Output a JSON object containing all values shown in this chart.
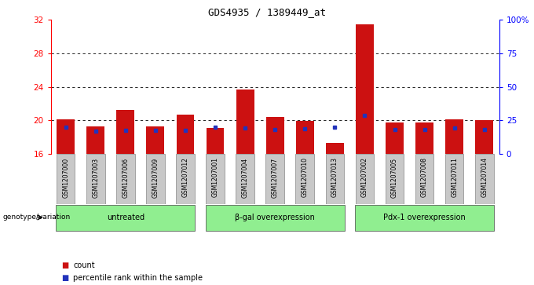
{
  "title": "GDS4935 / 1389449_at",
  "samples": [
    "GSM1207000",
    "GSM1207003",
    "GSM1207006",
    "GSM1207009",
    "GSM1207012",
    "GSM1207001",
    "GSM1207004",
    "GSM1207007",
    "GSM1207010",
    "GSM1207013",
    "GSM1207002",
    "GSM1207005",
    "GSM1207008",
    "GSM1207011",
    "GSM1207014"
  ],
  "count_values": [
    20.1,
    19.3,
    21.3,
    19.3,
    20.7,
    19.1,
    23.7,
    20.4,
    19.9,
    17.3,
    31.5,
    19.8,
    19.8,
    20.1,
    20.0
  ],
  "percentile_values": [
    19.2,
    18.7,
    18.8,
    18.8,
    18.8,
    19.2,
    19.1,
    18.9,
    19.0,
    19.2,
    20.6,
    18.9,
    18.9,
    19.1,
    18.9
  ],
  "groups": [
    {
      "label": "untreated",
      "indices": [
        0,
        1,
        2,
        3,
        4
      ]
    },
    {
      "label": "β-gal overexpression",
      "indices": [
        5,
        6,
        7,
        8,
        9
      ]
    },
    {
      "label": "Pdx-1 overexpression",
      "indices": [
        10,
        11,
        12,
        13,
        14
      ]
    }
  ],
  "ylim_left": [
    16,
    32
  ],
  "ylim_right": [
    0,
    100
  ],
  "yticks_left": [
    16,
    20,
    24,
    28,
    32
  ],
  "yticks_right": [
    0,
    25,
    50,
    75,
    100
  ],
  "ytick_labels_right": [
    "0",
    "25",
    "50",
    "75",
    "100%"
  ],
  "bar_color": "#cc1111",
  "blue_color": "#2233bb",
  "group_bg_color": "#90EE90",
  "bar_bg_color": "#c8c8c8",
  "legend_count_label": "count",
  "legend_percentile_label": "percentile rank within the sample",
  "genotype_label": "genotype/variation",
  "bar_width": 0.6,
  "baseline": 16
}
